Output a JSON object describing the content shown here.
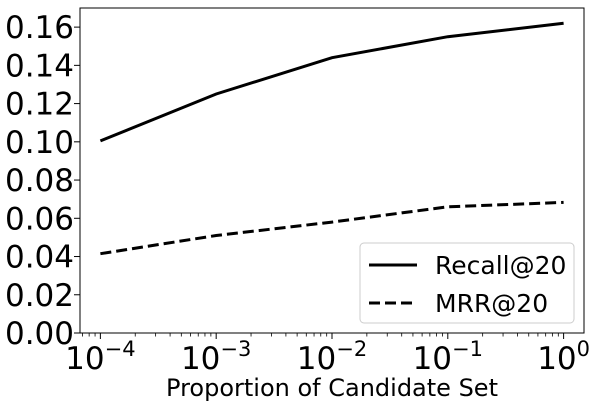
{
  "chart_data": {
    "type": "line",
    "title": "",
    "xlabel": "Proportion of Candidate Set",
    "ylabel": "",
    "x_scale": "log",
    "x": [
      0.0001,
      0.001,
      0.01,
      0.1,
      1
    ],
    "x_tick_labels": [
      {
        "base": "10",
        "exp": "−4"
      },
      {
        "base": "10",
        "exp": "−3"
      },
      {
        "base": "10",
        "exp": "−2"
      },
      {
        "base": "10",
        "exp": "−1"
      },
      {
        "base": "10",
        "exp": "0"
      }
    ],
    "xlim": [
      6.67e-05,
      1.5
    ],
    "ylim": [
      0,
      0.17
    ],
    "y_ticks": [
      "0.00",
      "0.02",
      "0.04",
      "0.06",
      "0.08",
      "0.10",
      "0.12",
      "0.14",
      "0.16"
    ],
    "grid": false,
    "legend_position": "lower-right",
    "series": [
      {
        "name": "Recall@20",
        "style": "solid",
        "color": "#000000",
        "values": [
          0.1005,
          0.125,
          0.144,
          0.155,
          0.162
        ]
      },
      {
        "name": "MRR@20",
        "style": "dashed",
        "color": "#000000",
        "values": [
          0.0415,
          0.051,
          0.058,
          0.066,
          0.0683
        ]
      }
    ]
  }
}
